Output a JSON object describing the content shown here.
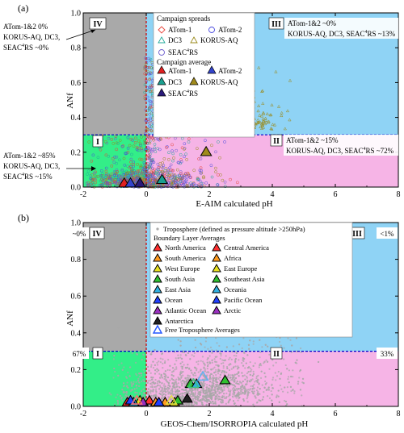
{
  "chart_data": [
    {
      "type": "scatter",
      "panel_label": "(a)",
      "xlabel": "E-AIM calculated pH",
      "ylabel": "ANf",
      "xlim": [
        -2,
        8
      ],
      "ylim": [
        0,
        1
      ],
      "xticks": [
        -2,
        0,
        2,
        4,
        6,
        8
      ],
      "yticks": [
        0.0,
        0.2,
        0.4,
        0.6,
        0.8,
        1.0
      ],
      "regions": [
        {
          "id": "I",
          "label": "I",
          "x": [
            -2,
            0
          ],
          "y": [
            0,
            0.3
          ],
          "color": "#33ee88"
        },
        {
          "id": "II",
          "label": "II",
          "x": [
            0,
            8
          ],
          "y": [
            0,
            0.3
          ],
          "color": "#f6b4e6"
        },
        {
          "id": "III",
          "label": "III",
          "x": [
            0,
            8
          ],
          "y": [
            0.3,
            1
          ],
          "color": "#8fd3f5"
        },
        {
          "id": "IV",
          "label": "IV",
          "x": [
            -2,
            0
          ],
          "y": [
            0.3,
            1
          ],
          "color": "#a9a9a9"
        }
      ],
      "annotations": {
        "region_III": [
          "ATom-1&2 ~0%",
          "KORUS-AQ, DC3, SEAC",
          "4",
          "RS ~13%"
        ],
        "region_II": [
          "ATom-1&2 ~15%",
          "KORUS-AQ, DC3, SEAC",
          "4",
          "RS ~72%"
        ],
        "outside_IV": [
          "ATom-1&2 0%",
          "KORUS-AQ, DC3,",
          "SEAC",
          "4",
          "RS ~0%"
        ],
        "outside_I": [
          "ATom-1&2 ~85%",
          "KORUS-AQ, DC3,",
          "SEAC",
          "4",
          "RS ~15%"
        ]
      },
      "legend": {
        "placement": "top-center",
        "title_spreads": "Campaign spreads",
        "title_average": "Campaign average",
        "spreads": [
          {
            "name": "ATom-1",
            "marker": "diamond-open",
            "color": "#e8443a"
          },
          {
            "name": "ATom-2",
            "marker": "circle-open",
            "color": "#4a4adf"
          },
          {
            "name": "DC3",
            "marker": "triangle-open",
            "color": "#22aa99"
          },
          {
            "name": "KORUS-AQ",
            "marker": "triangle-open",
            "color": "#9a8a1a"
          },
          {
            "name": "SEAC",
            "sup": "4",
            "name_tail": "RS",
            "marker": "circle-open",
            "color": "#6a5acd"
          }
        ],
        "averages": [
          {
            "name": "ATom-1",
            "marker": "triangle-filled",
            "color": "#e02020"
          },
          {
            "name": "ATom-2",
            "marker": "triangle-filled",
            "color": "#3344cc"
          },
          {
            "name": "DC3",
            "marker": "triangle-filled",
            "color": "#1aa090"
          },
          {
            "name": "KORUS-AQ",
            "marker": "triangle-filled",
            "color": "#a08a1a"
          },
          {
            "name": "SEAC",
            "sup": "4",
            "name_tail": "RS",
            "marker": "triangle-filled",
            "color": "#2a1a7a"
          }
        ]
      },
      "average_points": [
        {
          "series": "ATom-1",
          "x": -0.7,
          "y": 0.02
        },
        {
          "series": "ATom-2",
          "x": -0.5,
          "y": 0.02
        },
        {
          "series": "DC3",
          "x": 0.5,
          "y": 0.04
        },
        {
          "series": "KORUS-AQ",
          "x": 1.9,
          "y": 0.2
        },
        {
          "series": "SEAC4RS",
          "x": -0.2,
          "y": 0.02
        }
      ]
    },
    {
      "type": "scatter",
      "panel_label": "(b)",
      "xlabel": "GEOS-Chem/ISORROPIA calculated pH",
      "ylabel": "ANf",
      "xlim": [
        -2,
        8
      ],
      "ylim": [
        0,
        1
      ],
      "xticks": [
        -2,
        0,
        2,
        4,
        6,
        8
      ],
      "yticks": [
        0.0,
        0.2,
        0.4,
        0.6,
        0.8,
        1.0
      ],
      "regions": [
        {
          "id": "I",
          "label": "I",
          "percent": "67%",
          "x": [
            -2,
            0
          ],
          "y": [
            0,
            0.3
          ],
          "color": "#33ee88"
        },
        {
          "id": "II",
          "label": "II",
          "percent": "33%",
          "x": [
            0,
            8
          ],
          "y": [
            0,
            0.3
          ],
          "color": "#f6b4e6"
        },
        {
          "id": "III",
          "label": "III",
          "percent": "<1%",
          "x": [
            0,
            8
          ],
          "y": [
            0.3,
            1
          ],
          "color": "#8fd3f5"
        },
        {
          "id": "IV",
          "label": "IV",
          "percent": "~0%",
          "x": [
            -2,
            0
          ],
          "y": [
            0.3,
            1
          ],
          "color": "#a9a9a9"
        }
      ],
      "legend": {
        "placement": "top-center",
        "troposphere": "Troposphere (defined as pressure altitude >250hPa)",
        "boundary_title": "Boundary Layer Averages",
        "boundary": [
          {
            "name": "North America",
            "color": "#ff3030"
          },
          {
            "name": "Central America",
            "color": "#ff3030"
          },
          {
            "name": "South America",
            "color": "#ff9a20"
          },
          {
            "name": "Africa",
            "color": "#ff9a20"
          },
          {
            "name": "West Europe",
            "color": "#e8e020"
          },
          {
            "name": "East Europe",
            "color": "#e8e020"
          },
          {
            "name": "South Asia",
            "color": "#30c030"
          },
          {
            "name": "Southeast Asia",
            "color": "#30c030"
          },
          {
            "name": "East Asia",
            "color": "#30b0e0"
          },
          {
            "name": "Oceania",
            "color": "#30b0e0"
          },
          {
            "name": "Ocean",
            "color": "#2040ff"
          },
          {
            "name": "Pacific Ocean",
            "color": "#2040ff"
          },
          {
            "name": "Atlantic Ocean",
            "color": "#9a30c0"
          },
          {
            "name": "Arctic",
            "color": "#9a30c0"
          },
          {
            "name": "Antarctica",
            "color": "#202020"
          }
        ],
        "free_trop": {
          "name": "Free Troposphere Averages",
          "color": "#2255ff"
        }
      },
      "boundary_points": [
        {
          "x": -0.6,
          "y": 0.02,
          "color": "#ff3030"
        },
        {
          "x": 0.1,
          "y": 0.03,
          "color": "#ff3030"
        },
        {
          "x": 0.3,
          "y": 0.02,
          "color": "#ff9a20"
        },
        {
          "x": 0.6,
          "y": 0.02,
          "color": "#ff9a20"
        },
        {
          "x": -0.2,
          "y": 0.03,
          "color": "#e8e020"
        },
        {
          "x": 0.9,
          "y": 0.02,
          "color": "#e8e020"
        },
        {
          "x": 1.0,
          "y": 0.03,
          "color": "#30c030"
        },
        {
          "x": 1.4,
          "y": 0.12,
          "color": "#30c030"
        },
        {
          "x": 1.6,
          "y": 0.12,
          "color": "#30b0e0"
        },
        {
          "x": -0.4,
          "y": 0.02,
          "color": "#30b0e0"
        },
        {
          "x": -0.5,
          "y": 0.03,
          "color": "#2040ff"
        },
        {
          "x": 0.4,
          "y": 0.02,
          "color": "#2040ff"
        },
        {
          "x": -0.1,
          "y": 0.02,
          "color": "#9a30c0"
        },
        {
          "x": 2.5,
          "y": 0.14,
          "color": "#30c030"
        },
        {
          "x": 1.3,
          "y": 0.04,
          "color": "#202020"
        }
      ],
      "free_trop_points": [
        {
          "x": -0.3,
          "y": 0.03,
          "color": "#ff7070"
        },
        {
          "x": 0.8,
          "y": 0.03,
          "color": "#e0e040"
        },
        {
          "x": 1.5,
          "y": 0.12,
          "color": "#40c080"
        },
        {
          "x": 1.8,
          "y": 0.16,
          "color": "#60b0f0"
        }
      ]
    }
  ]
}
